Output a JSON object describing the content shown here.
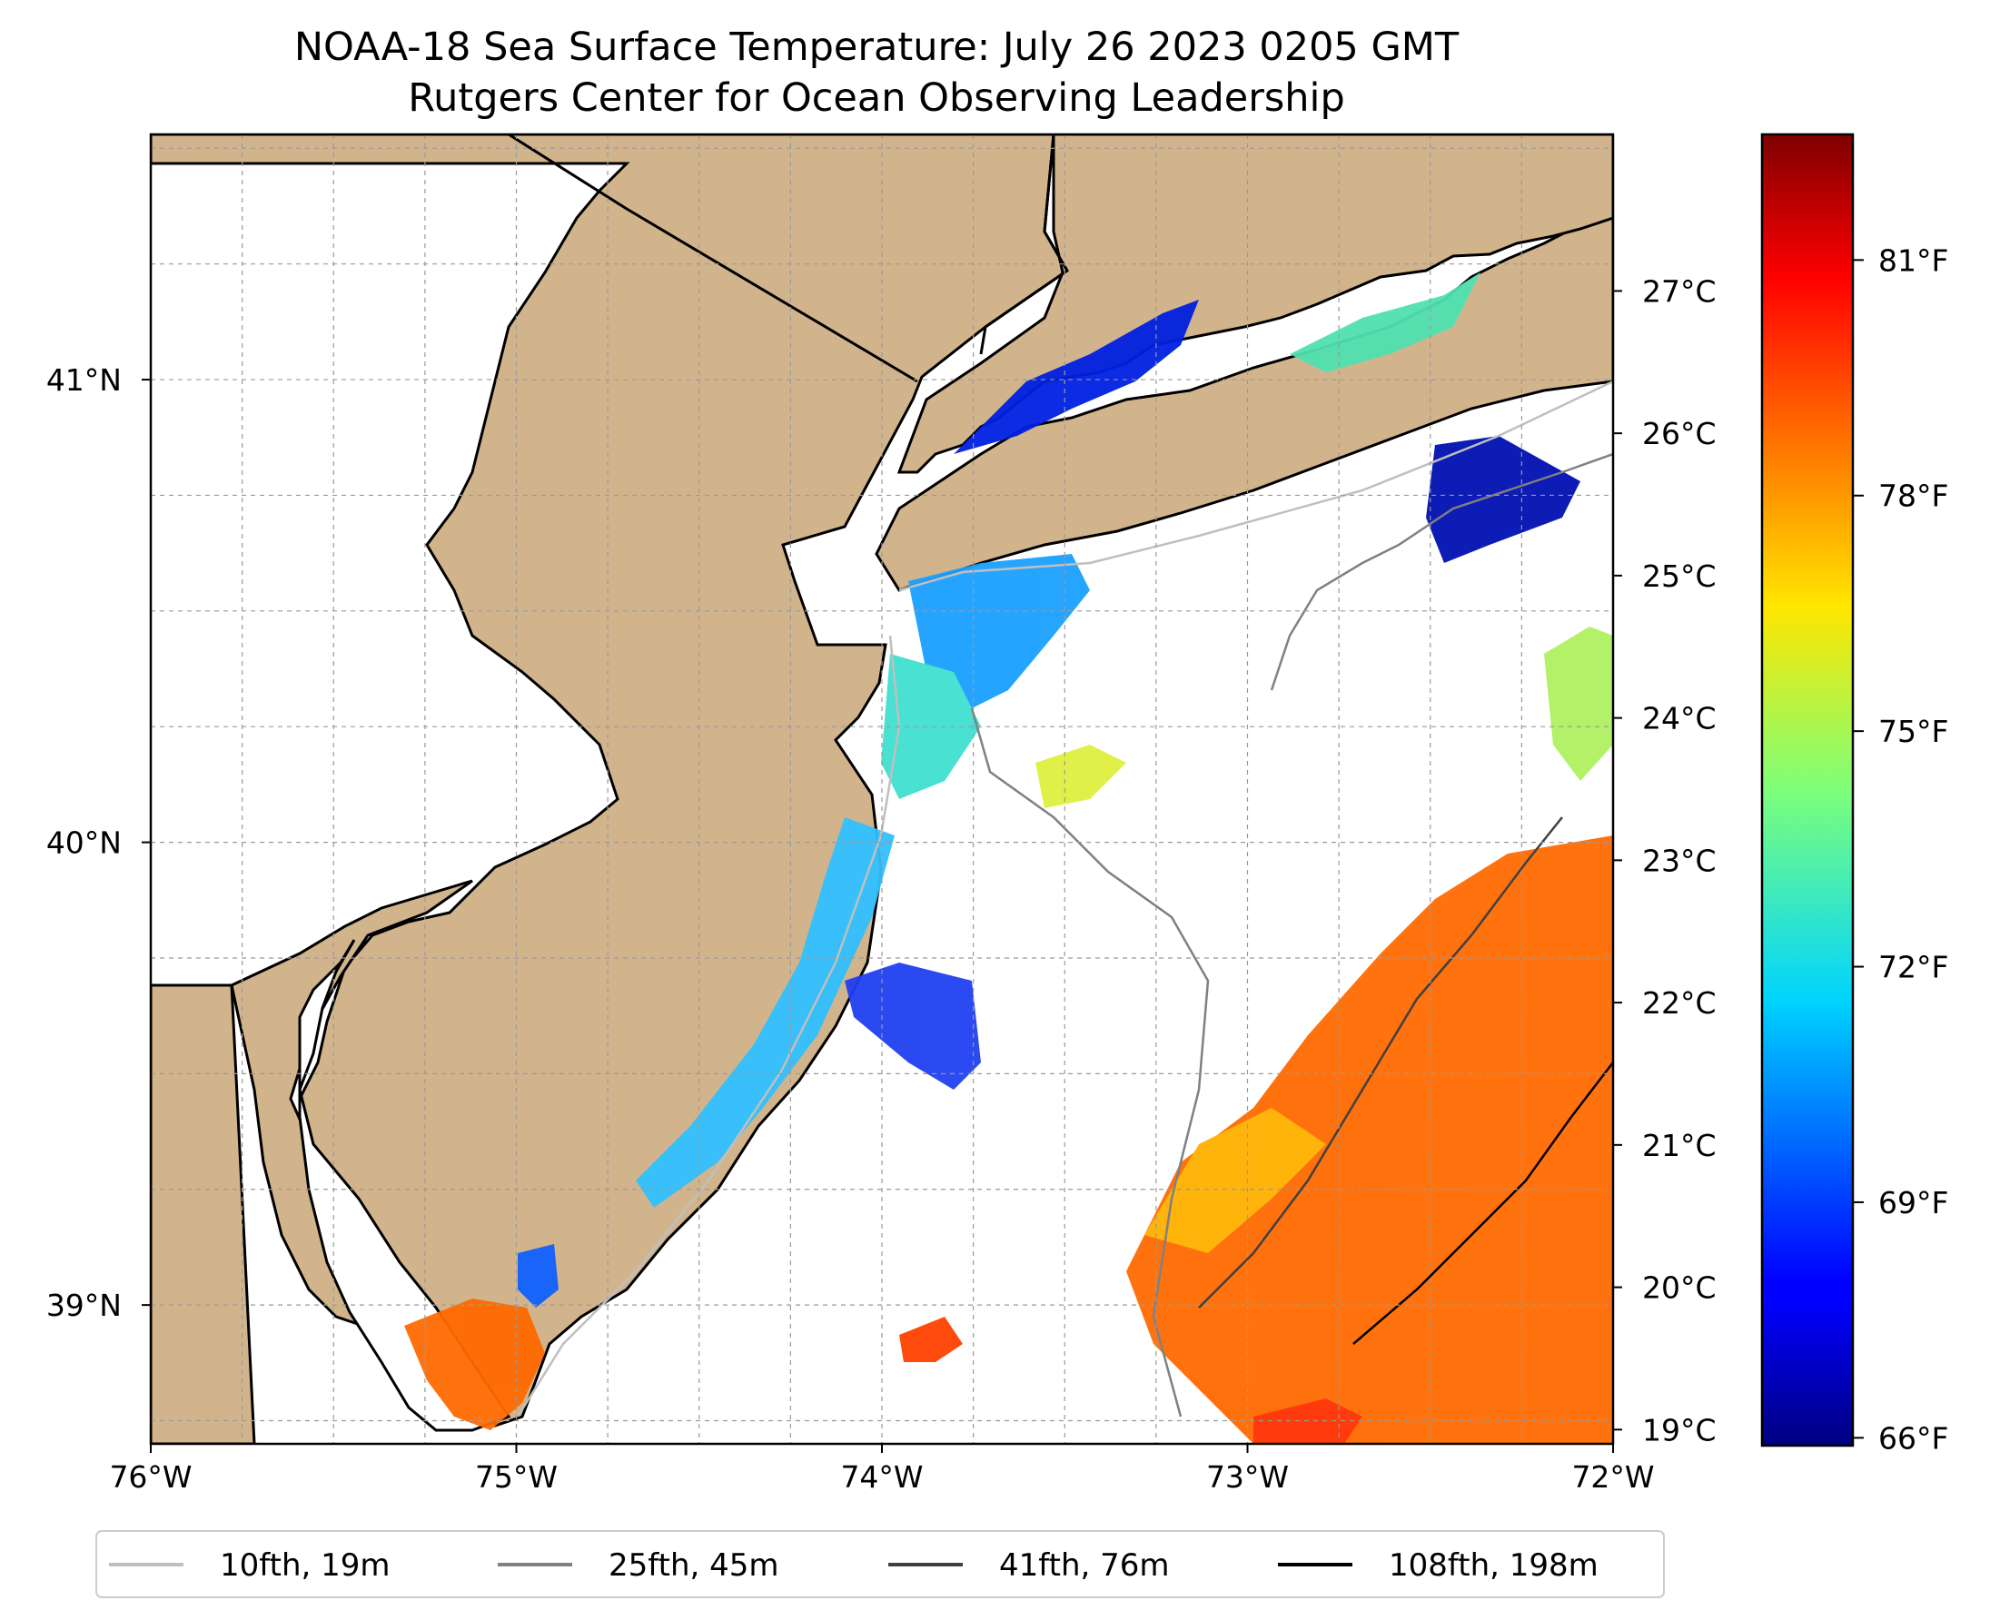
{
  "title": {
    "line1": "NOAA-18 Sea Surface Temperature: July 26 2023 0205 GMT",
    "line2": "Rutgers Center for Ocean Observing Leadership"
  },
  "map": {
    "lon_range": [
      -76,
      -72
    ],
    "lat_range": [
      38.7,
      41.53
    ],
    "x_ticks": [
      {
        "value": -76,
        "label": "76°W"
      },
      {
        "value": -75,
        "label": "75°W"
      },
      {
        "value": -74,
        "label": "74°W"
      },
      {
        "value": -73,
        "label": "73°W"
      },
      {
        "value": -72,
        "label": "72°W"
      }
    ],
    "y_ticks": [
      {
        "value": 39,
        "label": "39°N"
      },
      {
        "value": 40,
        "label": "40°N"
      },
      {
        "value": 41,
        "label": "41°N"
      }
    ],
    "land_color": "#d2b48c",
    "gridlines": true
  },
  "sst_celsius_axis": {
    "range": [
      18.9,
      28.1
    ],
    "ticks": [
      {
        "value": 19,
        "label": "19°C"
      },
      {
        "value": 20,
        "label": "20°C"
      },
      {
        "value": 21,
        "label": "21°C"
      },
      {
        "value": 22,
        "label": "22°C"
      },
      {
        "value": 23,
        "label": "23°C"
      },
      {
        "value": 24,
        "label": "24°C"
      },
      {
        "value": 25,
        "label": "25°C"
      },
      {
        "value": 26,
        "label": "26°C"
      },
      {
        "value": 27,
        "label": "27°C"
      }
    ]
  },
  "colorbar": {
    "colormap": "jet",
    "range_f": [
      65.9,
      82.6
    ],
    "ticks": [
      {
        "value": 66,
        "label": "66°F"
      },
      {
        "value": 69,
        "label": "69°F"
      },
      {
        "value": 72,
        "label": "72°F"
      },
      {
        "value": 75,
        "label": "75°F"
      },
      {
        "value": 78,
        "label": "78°F"
      },
      {
        "value": 81,
        "label": "81°F"
      }
    ]
  },
  "legend": [
    {
      "label": "10fth, 19m",
      "color": "#bfbfbf"
    },
    {
      "label": "25fth, 45m",
      "color": "#808080"
    },
    {
      "label": "41fth, 76m",
      "color": "#404040"
    },
    {
      "label": "108fth, 198m",
      "color": "#000000"
    }
  ]
}
